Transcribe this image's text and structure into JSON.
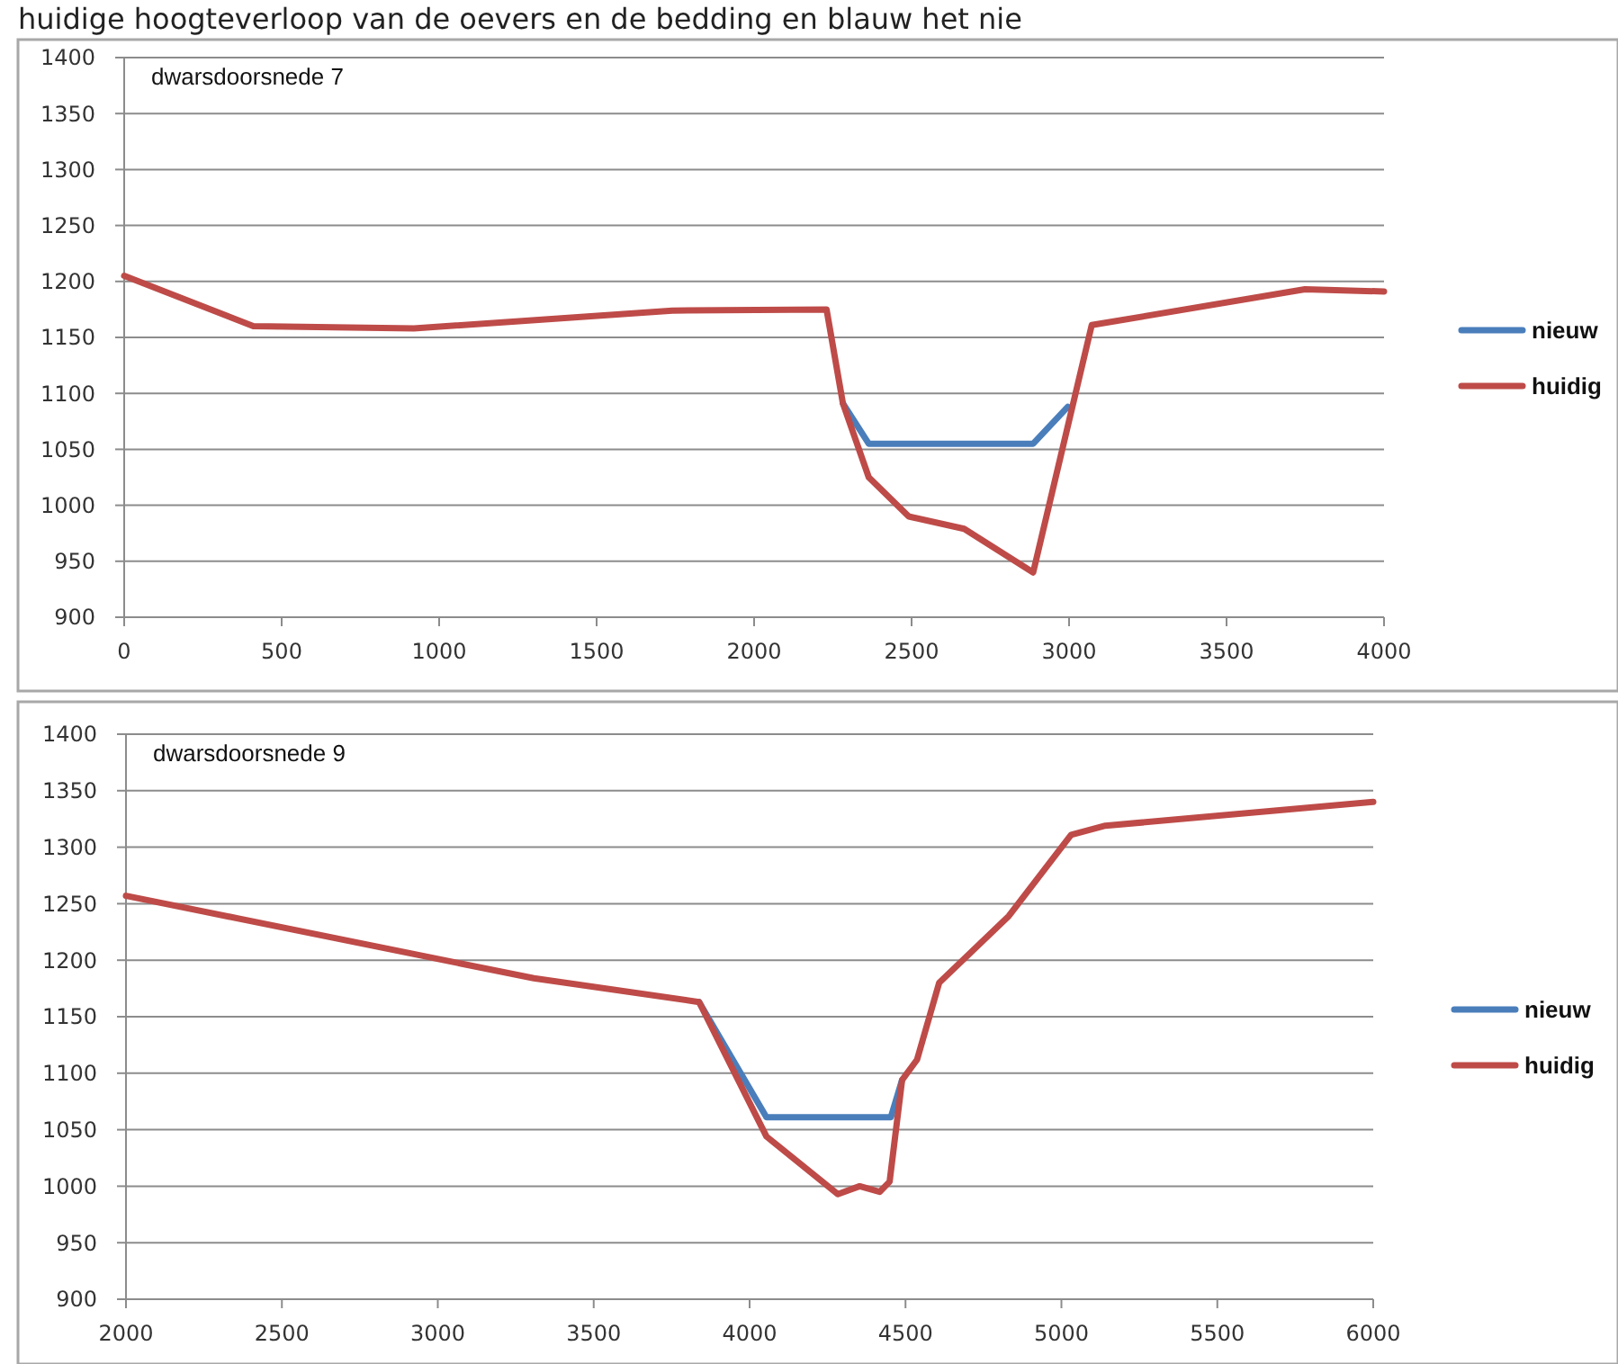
{
  "chart_data": [
    {
      "type": "line",
      "title": "dwarsdoorsnede 7",
      "annotations": [
        "huidige hoogteverloop van de oevers en de bedding en blauw het nie"
      ],
      "series": [
        {
          "name": "nieuw",
          "color": "#4a7ebb",
          "x": [
            2282,
            2364,
            2886,
            2996
          ],
          "values": [
            1091,
            1055,
            1055,
            1088
          ]
        },
        {
          "name": "huidig",
          "color": "#be4b48",
          "x": [
            0,
            410,
            920,
            1740,
            2230,
            2282,
            2364,
            2491,
            2667,
            2886,
            3072,
            3749,
            4000
          ],
          "values": [
            1205,
            1160,
            1158,
            1174,
            1175,
            1091,
            1025,
            990,
            979,
            940,
            1161,
            1193,
            1191
          ]
        }
      ],
      "xlim": [
        0,
        4000
      ],
      "xticks": [
        0,
        500,
        1000,
        1500,
        2000,
        2500,
        3000,
        3500,
        4000
      ],
      "ylim": [
        900,
        1400
      ],
      "yticks": [
        900,
        950,
        1000,
        1050,
        1100,
        1150,
        1200,
        1250,
        1300,
        1350,
        1400
      ],
      "grid": "y",
      "legend": "right"
    },
    {
      "type": "line",
      "title": "dwarsdoorsnede 9",
      "series": [
        {
          "name": "nieuw",
          "color": "#4a7ebb",
          "x": [
            3838,
            4054,
            4453,
            4489
          ],
          "values": [
            1163,
            1061,
            1061,
            1094
          ]
        },
        {
          "name": "huidig",
          "color": "#be4b48",
          "x": [
            2000,
            3308,
            3838,
            4054,
            4283,
            4353,
            4417,
            4449,
            4489,
            4537,
            4608,
            4831,
            5031,
            5141,
            6000
          ],
          "values": [
            1257,
            1184,
            1163,
            1044,
            993,
            1000,
            995,
            1004,
            1094,
            1112,
            1180,
            1239,
            1311,
            1319,
            1340
          ]
        }
      ],
      "xlim": [
        2000,
        6000
      ],
      "xticks": [
        2000,
        2500,
        3000,
        3500,
        4000,
        4500,
        5000,
        5500,
        6000
      ],
      "ylim": [
        900,
        1400
      ],
      "yticks": [
        900,
        950,
        1000,
        1050,
        1100,
        1150,
        1200,
        1250,
        1300,
        1350,
        1400
      ],
      "grid": "y",
      "legend": "right"
    }
  ]
}
